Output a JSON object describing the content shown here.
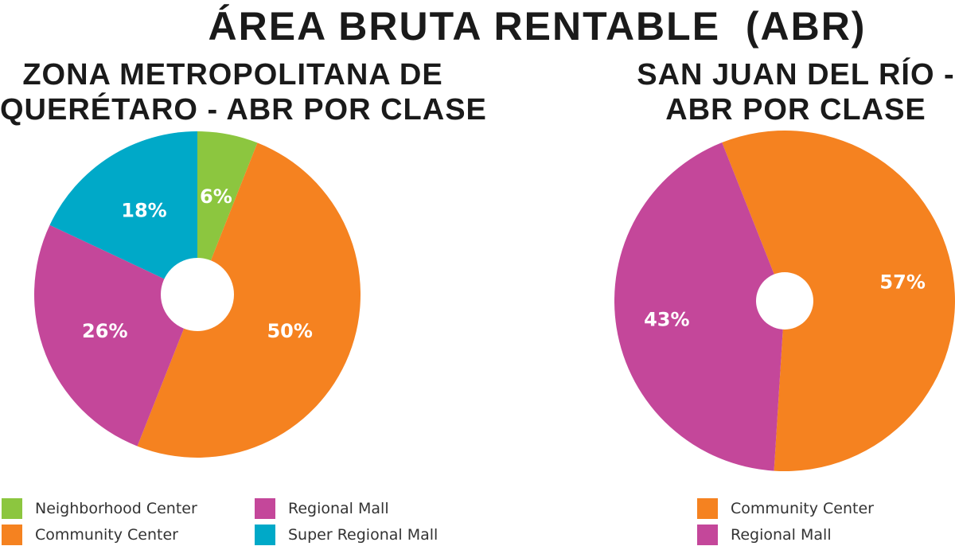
{
  "title": "ÁREA BRUTA RENTABLE  (ABR)",
  "colors": {
    "Neighborhood Center": "#8cc63f",
    "Community Center": "#f58220",
    "Regional Mall": "#c4479a",
    "Super Regional Mall": "#00a9c8"
  },
  "chart_data": [
    {
      "type": "pie",
      "title_lines": [
        "ZONA METROPOLITANA DE",
        "QUERÉTARO - ABR POR CLASE"
      ],
      "slices": [
        {
          "label": "Neighborhood Center",
          "value": 6,
          "text": "6%"
        },
        {
          "label": "Community Center",
          "value": 50,
          "text": "50%"
        },
        {
          "label": "Regional Mall",
          "value": 26,
          "text": "26%"
        },
        {
          "label": "Super Regional Mall",
          "value": 18,
          "text": "18%"
        }
      ],
      "legend": [
        "Neighborhood Center",
        "Regional Mall",
        "Community Center",
        "Super Regional Mall"
      ],
      "legend_placement": "bottom"
    },
    {
      "type": "pie",
      "title_lines": [
        "SAN JUAN DEL RÍO -",
        "ABR POR CLASE"
      ],
      "slices": [
        {
          "label": "Community Center",
          "value": 57,
          "text": "57%"
        },
        {
          "label": "Regional Mall",
          "value": 43,
          "text": "43%"
        }
      ],
      "legend": [
        "Community Center",
        "Regional Mall"
      ],
      "legend_placement": "bottom"
    }
  ]
}
